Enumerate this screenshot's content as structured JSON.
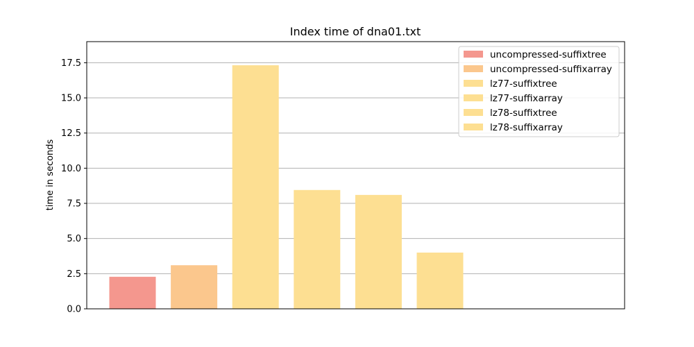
{
  "chart_data": {
    "type": "bar",
    "title": "Index time of dna01.txt",
    "xlabel": "",
    "ylabel": "time in seconds",
    "ylim": [
      0,
      19.0
    ],
    "yticks": [
      0.0,
      2.5,
      5.0,
      7.5,
      10.0,
      12.5,
      15.0,
      17.5
    ],
    "ytick_labels": [
      "0.0",
      "2.5",
      "5.0",
      "7.5",
      "10.0",
      "12.5",
      "15.0",
      "17.5"
    ],
    "grid": "y",
    "legend_position": "top-right",
    "series": [
      {
        "name": "uncompressed-suffixtree",
        "value": 2.28,
        "color": "#f4978e"
      },
      {
        "name": "uncompressed-suffixarray",
        "value": 3.1,
        "color": "#fbc78d"
      },
      {
        "name": "lz77-suffixtree",
        "value": 17.32,
        "color": "#fddf92"
      },
      {
        "name": "lz77-suffixarray",
        "value": 8.45,
        "color": "#fddf92"
      },
      {
        "name": "lz78-suffixtree",
        "value": 8.1,
        "color": "#fddf92"
      },
      {
        "name": "lz78-suffixarray",
        "value": 4.0,
        "color": "#fddf92"
      }
    ]
  }
}
